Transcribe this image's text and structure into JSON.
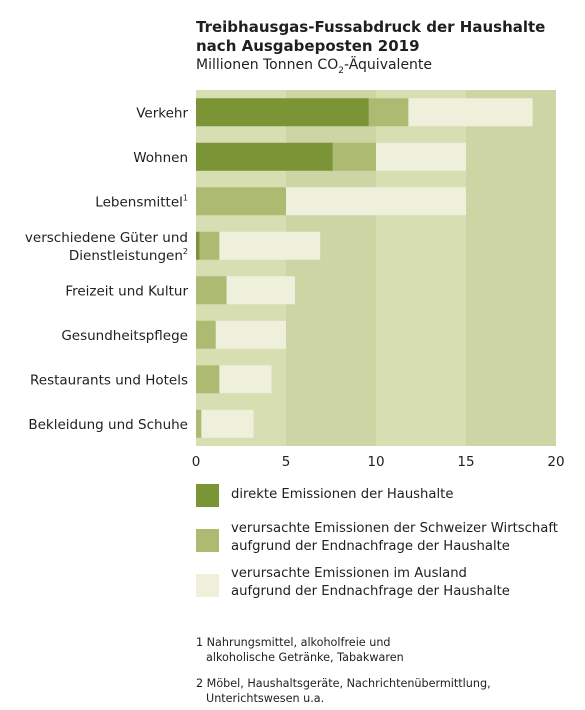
{
  "title_line1": "Treibhausgas-Fussabdruck der Haushalte",
  "title_line2": "nach Ausgabeposten 2019",
  "subtitle_pre": "Millionen Tonnen CO",
  "subtitle_sub": "2",
  "subtitle_post": "-Äquivalente",
  "chart_data": {
    "type": "bar",
    "orientation": "horizontal",
    "stacked": true,
    "categories": [
      {
        "lines": [
          "Verkehr"
        ],
        "sup": ""
      },
      {
        "lines": [
          "Wohnen"
        ],
        "sup": ""
      },
      {
        "lines": [
          "Lebensmittel"
        ],
        "sup": "1"
      },
      {
        "lines": [
          "verschiedene Güter und",
          "Dienstleistungen"
        ],
        "sup": "2"
      },
      {
        "lines": [
          "Freizeit und Kultur"
        ],
        "sup": ""
      },
      {
        "lines": [
          "Gesundheitspflege"
        ],
        "sup": ""
      },
      {
        "lines": [
          "Restaurants und Hotels"
        ],
        "sup": ""
      },
      {
        "lines": [
          "Bekleidung und Schuhe"
        ],
        "sup": ""
      }
    ],
    "series": [
      {
        "name": "direkte Emissionen der Haushalte",
        "color": "#7a9436",
        "values": [
          9.6,
          7.6,
          0,
          0.2,
          0,
          0,
          0,
          0
        ]
      },
      {
        "name": "verursachte Emissionen der Schweizer Wirtschaft aufgrund der Endnachfrage der Haushalte",
        "color": "#adbb72",
        "values": [
          2.2,
          2.4,
          5.0,
          1.1,
          1.7,
          1.1,
          1.3,
          0.3
        ]
      },
      {
        "name": "verursachte Emissionen im Ausland aufgrund der Endnachfrage der Haushalte",
        "color": "#eef0dc",
        "values": [
          6.9,
          5.0,
          10.0,
          5.6,
          3.8,
          3.9,
          2.9,
          2.9
        ]
      }
    ],
    "xlim": [
      0,
      20
    ],
    "xticks": [
      "0",
      "5",
      "10",
      "15",
      "20"
    ],
    "background_bands": [
      "#d7deb2",
      "#ccd5a3"
    ],
    "grid": false,
    "legend_position": "bottom"
  },
  "legend": [
    {
      "lines": [
        "direkte Emissionen der Haushalte"
      ],
      "color": "#7a9436"
    },
    {
      "lines": [
        "verursachte Emissionen der Schweizer Wirtschaft",
        "aufgrund der Endnachfrage der Haushalte"
      ],
      "color": "#adbb72"
    },
    {
      "lines": [
        "verursachte Emissionen im Ausland",
        "aufgrund der Endnachfrage der Haushalte"
      ],
      "color": "#eef0dc"
    }
  ],
  "footnotes": [
    {
      "line1": "1 Nahrungsmittel, alkoholfreie und",
      "line2": "alkoholische Getränke, Tabakwaren"
    },
    {
      "line1": "2 Möbel, Haushaltsgeräte, Nachrichtenübermittlung,",
      "line2": "Unterichtswesen u.a."
    }
  ]
}
